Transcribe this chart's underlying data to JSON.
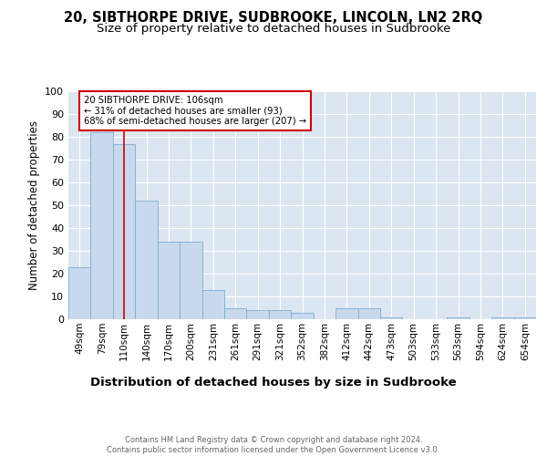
{
  "title": "20, SIBTHORPE DRIVE, SUDBROOKE, LINCOLN, LN2 2RQ",
  "subtitle": "Size of property relative to detached houses in Sudbrooke",
  "xlabel": "Distribution of detached houses by size in Sudbrooke",
  "ylabel": "Number of detached properties",
  "categories": [
    "49sqm",
    "79sqm",
    "110sqm",
    "140sqm",
    "170sqm",
    "200sqm",
    "231sqm",
    "261sqm",
    "291sqm",
    "321sqm",
    "352sqm",
    "382sqm",
    "412sqm",
    "442sqm",
    "473sqm",
    "503sqm",
    "533sqm",
    "563sqm",
    "594sqm",
    "624sqm",
    "654sqm"
  ],
  "values": [
    23,
    82,
    77,
    52,
    34,
    34,
    13,
    5,
    4,
    4,
    3,
    0,
    5,
    5,
    1,
    0,
    0,
    1,
    0,
    1,
    1
  ],
  "bar_color": "#c8d9ee",
  "bar_edge_color": "#7badd4",
  "vline_x": 2,
  "vline_color": "#cc0000",
  "annotation_text": "20 SIBTHORPE DRIVE: 106sqm\n← 31% of detached houses are smaller (93)\n68% of semi-detached houses are larger (207) →",
  "annotation_box_color": "#ffffff",
  "annotation_box_edge": "#cc0000",
  "background_color": "#dce6f1",
  "ylim": [
    0,
    100
  ],
  "footer": "Contains HM Land Registry data © Crown copyright and database right 2024.\nContains public sector information licensed under the Open Government Licence v3.0.",
  "title_fontsize": 10.5,
  "subtitle_fontsize": 9.5,
  "ylabel_fontsize": 8.5,
  "xlabel_fontsize": 9.5,
  "tick_fontsize": 7.5,
  "ytick_fontsize": 8
}
